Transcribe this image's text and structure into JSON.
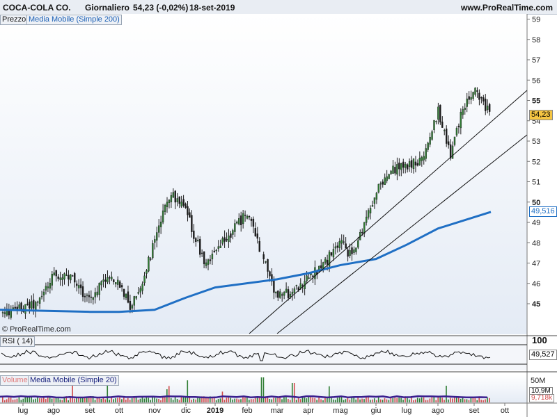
{
  "header": {
    "instrument": "COCA-COLA CO.",
    "timeframe": "Giornaliero",
    "quote": "54,23 (-0,02%)",
    "date": "18-set-2019",
    "site": "www.ProRealTime.com"
  },
  "panels": {
    "price_label": "Prezzo",
    "price_ma_label": "Media Mobile (Simple 200)",
    "rsi_label": "RSI ( 14)",
    "volume_label": "Volume",
    "volume_ma_label": "Media Mobile (Simple 20)",
    "watermark": "© ProRealTime.com"
  },
  "badges": {
    "last_price": "54,23",
    "ma200": "49,516",
    "rsi": "49,527",
    "volume_max": "50M",
    "volume_a": "10,9M",
    "volume_b": "9,718k"
  },
  "colors": {
    "candle_up": "#2e7d32",
    "candle_down": "#1b1b1b",
    "ma200": "#1f6fc4",
    "volume_ma": "#3a1f8f",
    "price_badge": "#f5c542"
  },
  "chart_data": {
    "type": "line",
    "price_axis": {
      "ticks": [
        "45",
        "46",
        "47",
        "48",
        "49",
        "50",
        "51",
        "52",
        "53",
        "54",
        "55",
        "56",
        "57",
        "58",
        "59"
      ],
      "ylim": [
        44,
        59
      ]
    },
    "rsi_axis": {
      "ticks": [
        "100"
      ]
    },
    "x_tick_labels": [
      "lug",
      "ago",
      "set",
      "ott",
      "nov",
      "dic",
      "2019",
      "feb",
      "mar",
      "apr",
      "mag",
      "giu",
      "lug",
      "ago",
      "set",
      "ott"
    ],
    "price_series": [
      {
        "m": "lug",
        "v": 44.5
      },
      {
        "m": "lug",
        "v": 45.0
      },
      {
        "m": "ago",
        "v": 46.5
      },
      {
        "m": "ago",
        "v": 46.2
      },
      {
        "m": "set",
        "v": 45.2
      },
      {
        "m": "set",
        "v": 46.3
      },
      {
        "m": "ott",
        "v": 46.0
      },
      {
        "m": "ott",
        "v": 44.8
      },
      {
        "m": "ott",
        "v": 46.2
      },
      {
        "m": "nov",
        "v": 48.0
      },
      {
        "m": "nov",
        "v": 50.5
      },
      {
        "m": "dic",
        "v": 49.5
      },
      {
        "m": "dic",
        "v": 48.2
      },
      {
        "m": "dic",
        "v": 47.0
      },
      {
        "m": "2019",
        "v": 47.5
      },
      {
        "m": "2019",
        "v": 48.5
      },
      {
        "m": "feb",
        "v": 49.5
      },
      {
        "m": "mar",
        "v": 45.3
      },
      {
        "m": "mar",
        "v": 45.6
      },
      {
        "m": "apr",
        "v": 46.3
      },
      {
        "m": "apr",
        "v": 47.0
      },
      {
        "m": "mag",
        "v": 48.0
      },
      {
        "m": "mag",
        "v": 47.3
      },
      {
        "m": "mag",
        "v": 49.0
      },
      {
        "m": "giu",
        "v": 50.5
      },
      {
        "m": "giu",
        "v": 51.5
      },
      {
        "m": "lug",
        "v": 51.8
      },
      {
        "m": "lug",
        "v": 52.0
      },
      {
        "m": "ago",
        "v": 54.5
      },
      {
        "m": "ago",
        "v": 52.3
      },
      {
        "m": "ago",
        "v": 54.5
      },
      {
        "m": "set",
        "v": 55.5
      },
      {
        "m": "set",
        "v": 54.23
      }
    ],
    "moving_average_200": [
      {
        "m": "lug",
        "v": 44.7
      },
      {
        "m": "set",
        "v": 44.6
      },
      {
        "m": "ott",
        "v": 44.6
      },
      {
        "m": "nov",
        "v": 44.7
      },
      {
        "m": "dic",
        "v": 45.3
      },
      {
        "m": "2019",
        "v": 45.8
      },
      {
        "m": "mar",
        "v": 46.2
      },
      {
        "m": "apr",
        "v": 46.5
      },
      {
        "m": "mag",
        "v": 46.9
      },
      {
        "m": "giu",
        "v": 47.2
      },
      {
        "m": "lug",
        "v": 47.9
      },
      {
        "m": "ago",
        "v": 48.7
      },
      {
        "m": "set",
        "v": 49.516
      }
    ],
    "rsi_last": 49.527
  }
}
